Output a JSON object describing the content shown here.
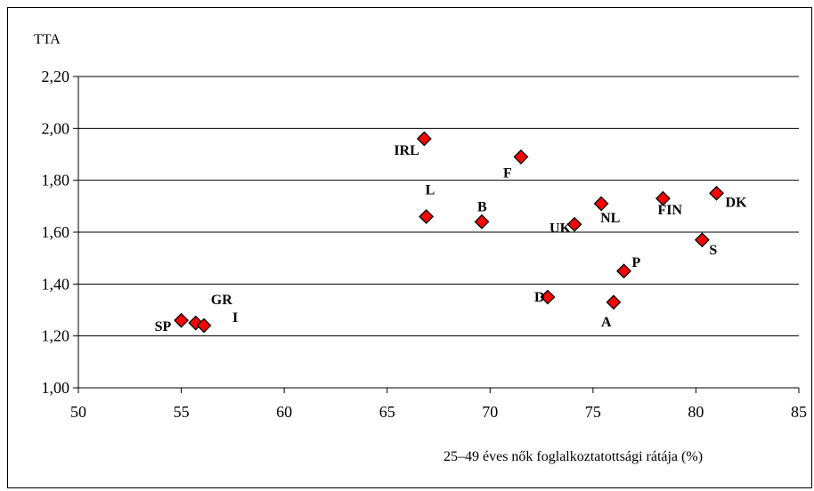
{
  "chart_data": {
    "type": "scatter",
    "title": "",
    "ylabel": "TTA",
    "xlabel": "25–49 éves nők foglalkoztatottsági rátája (%)",
    "xlim": [
      50,
      85
    ],
    "ylim": [
      1.0,
      2.2
    ],
    "x_ticks": [
      "50",
      "55",
      "60",
      "65",
      "70",
      "75",
      "80",
      "85"
    ],
    "y_ticks": [
      "1,00",
      "1,20",
      "1,40",
      "1,60",
      "1,80",
      "2,00",
      "2,20"
    ],
    "grid": "horizontal",
    "marker": "diamond",
    "marker_color": "#ff0000",
    "points": [
      {
        "label": "SP",
        "x": 55.0,
        "y": 1.26
      },
      {
        "label": "GR",
        "x": 55.7,
        "y": 1.25
      },
      {
        "label": "I",
        "x": 56.1,
        "y": 1.24
      },
      {
        "label": "IRL",
        "x": 66.8,
        "y": 1.96
      },
      {
        "label": "L",
        "x": 66.9,
        "y": 1.66
      },
      {
        "label": "B",
        "x": 69.6,
        "y": 1.64
      },
      {
        "label": "F",
        "x": 71.5,
        "y": 1.89
      },
      {
        "label": "D",
        "x": 72.8,
        "y": 1.35
      },
      {
        "label": "UK",
        "x": 74.1,
        "y": 1.63
      },
      {
        "label": "NL",
        "x": 75.4,
        "y": 1.71
      },
      {
        "label": "A",
        "x": 76.0,
        "y": 1.33
      },
      {
        "label": "P",
        "x": 76.5,
        "y": 1.45
      },
      {
        "label": "FIN",
        "x": 78.4,
        "y": 1.73
      },
      {
        "label": "S",
        "x": 80.3,
        "y": 1.57
      },
      {
        "label": "DK",
        "x": 81.0,
        "y": 1.75
      }
    ]
  }
}
